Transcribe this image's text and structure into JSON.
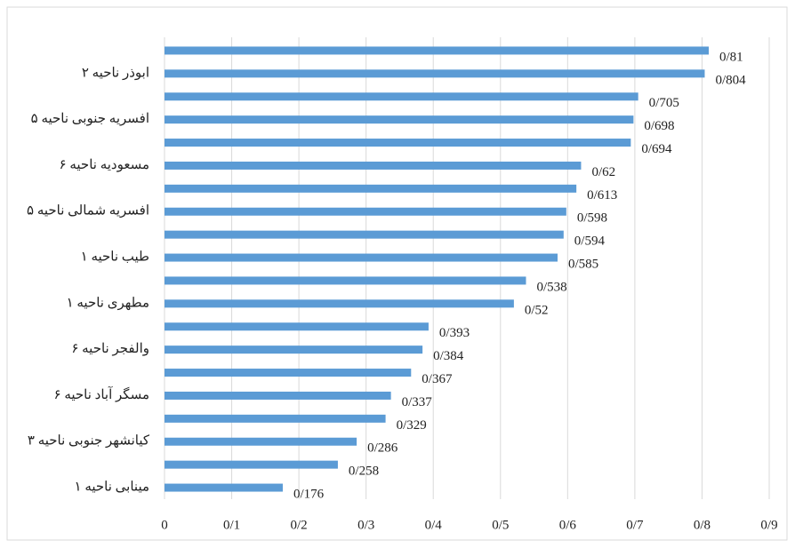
{
  "chart_data": {
    "type": "hbar",
    "categories": [
      null,
      "ابوذر ناحیه ۲",
      null,
      "افسریه جنوبی ناحیه ۵",
      null,
      "مسعودیه ناحیه ۶",
      null,
      "افسریه شمالی ناحیه ۵",
      null,
      "طیب ناحیه ۱",
      null,
      "مطهری ناحیه ۱",
      null,
      "والفجر ناحیه ۶",
      null,
      "مسگر آباد ناحیه ۶",
      null,
      "کیانشهر جنوبی ناحیه ۳",
      null,
      "مینابی ناحیه ۱"
    ],
    "values": [
      0.81,
      0.804,
      0.705,
      0.698,
      0.694,
      0.62,
      0.613,
      0.598,
      0.594,
      0.585,
      0.538,
      0.52,
      0.393,
      0.384,
      0.367,
      0.337,
      0.329,
      0.286,
      0.258,
      0.176
    ],
    "value_labels": [
      "0/81",
      "0/804",
      "0/705",
      "0/698",
      "0/694",
      "0/62",
      "0/613",
      "0/598",
      "0/594",
      "0/585",
      "0/538",
      "0/52",
      "0/393",
      "0/384",
      "0/367",
      "0/337",
      "0/329",
      "0/286",
      "0/258",
      "0/176"
    ],
    "color": "#5b9bd5",
    "xlim": [
      0,
      0.9
    ],
    "xticks": [
      0,
      {
        "value": 0.1,
        "label": "0/1"
      },
      {
        "value": 0.2,
        "label": "0/2"
      },
      {
        "value": 0.3,
        "label": "0/3"
      },
      {
        "value": 0.4,
        "label": "0/4"
      },
      {
        "value": 0.5,
        "label": "0/5"
      },
      {
        "value": 0.6,
        "label": "0/6"
      },
      {
        "value": 0.7,
        "label": "0/7"
      },
      {
        "value": 0.8,
        "label": "0/8"
      },
      {
        "value": 0.9,
        "label": "0/9"
      }
    ],
    "grid": true
  }
}
